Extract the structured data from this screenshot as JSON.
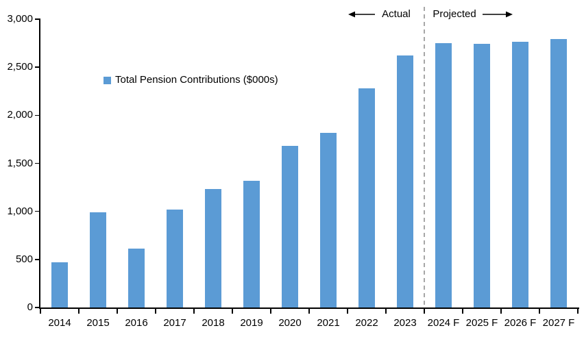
{
  "chart_data": {
    "type": "bar",
    "title": "",
    "legend_label": "Total Pension Contributions ($000s)",
    "categories": [
      "2014",
      "2015",
      "2016",
      "2017",
      "2018",
      "2019",
      "2020",
      "2021",
      "2022",
      "2023",
      "2024 F",
      "2025 F",
      "2026 F",
      "2027 F"
    ],
    "values": [
      470,
      990,
      610,
      1020,
      1235,
      1320,
      1685,
      1815,
      2280,
      2620,
      2750,
      2740,
      2765,
      2790
    ],
    "ylim": [
      0,
      3000
    ],
    "yticks": [
      0,
      500,
      1000,
      1500,
      2000,
      2500,
      3000
    ],
    "ytick_labels": [
      "0",
      "500",
      "1,000",
      "1,500",
      "2,000",
      "2,500",
      "3,000"
    ],
    "grid": false,
    "legend_position": "inside-upper-left",
    "annotations": {
      "actual_label": "Actual",
      "projected_label": "Projected",
      "divider_between": [
        "2023",
        "2024 F"
      ]
    },
    "colors": {
      "bar": "#5B9BD5",
      "divider": "#A6A6A6",
      "axis": "#000000",
      "text": "#000000"
    }
  }
}
